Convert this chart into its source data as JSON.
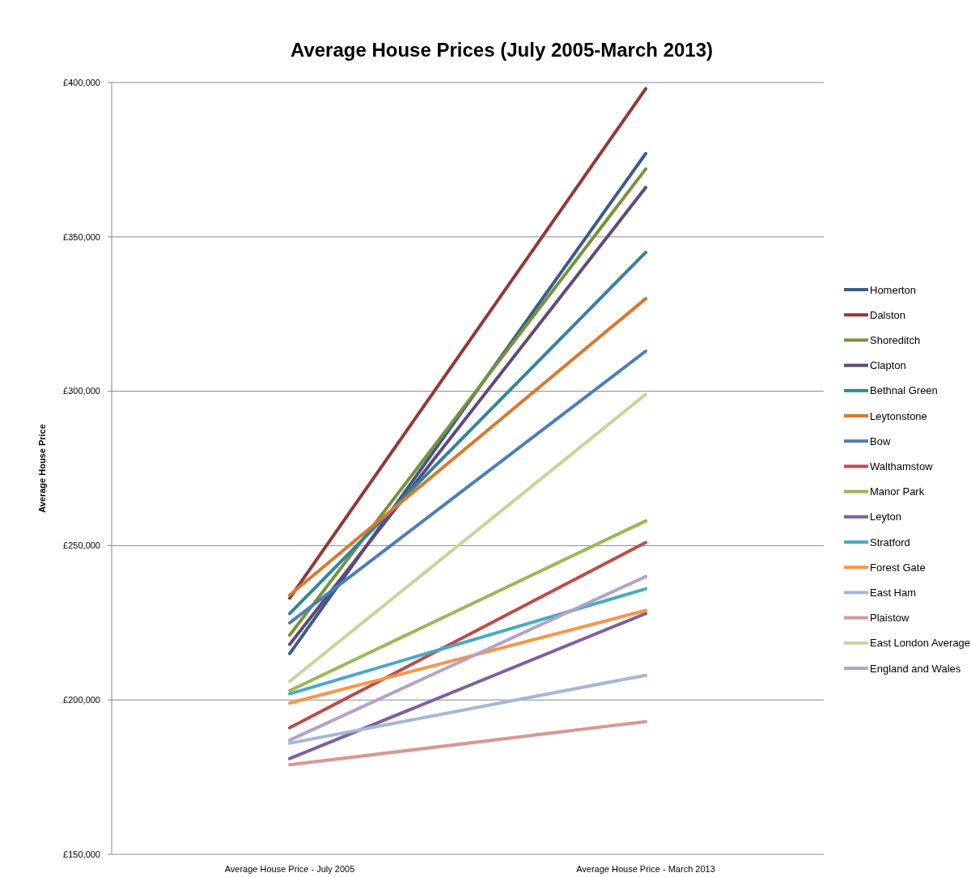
{
  "chart_data": {
    "type": "line",
    "title": "Average House Prices (July 2005-March 2013)",
    "ylabel": "Average House Price",
    "categories": [
      "Average House Price - July 2005",
      "Average House Price - March 2013"
    ],
    "ylim": [
      150000,
      400000
    ],
    "yticks": [
      {
        "value": 150000,
        "label": "£150,000"
      },
      {
        "value": 200000,
        "label": "£200,000"
      },
      {
        "value": 250000,
        "label": "£250,000"
      },
      {
        "value": 300000,
        "label": "£300,000"
      },
      {
        "value": 350000,
        "label": "£350,000"
      },
      {
        "value": 400000,
        "label": "£400,000"
      }
    ],
    "grid": "y",
    "legend": "right",
    "marker": "none",
    "line_style": "solid",
    "series": [
      {
        "name": "Homerton",
        "color": "#3c5a8c",
        "values": [
          215000,
          377000
        ]
      },
      {
        "name": "Dalston",
        "color": "#953735",
        "values": [
          233000,
          398000
        ]
      },
      {
        "name": "Shoreditch",
        "color": "#77933c",
        "values": [
          221000,
          372000
        ]
      },
      {
        "name": "Clapton",
        "color": "#5f497a",
        "values": [
          218000,
          366000
        ]
      },
      {
        "name": "Bethnal Green",
        "color": "#31859c",
        "values": [
          228000,
          345000
        ]
      },
      {
        "name": "Leytonstone",
        "color": "#d9782d",
        "values": [
          234000,
          330000
        ]
      },
      {
        "name": "Bow",
        "color": "#4a7ebb",
        "values": [
          225000,
          313000
        ]
      },
      {
        "name": "Walthamstow",
        "color": "#be4b48",
        "values": [
          191000,
          251000
        ]
      },
      {
        "name": "Manor Park",
        "color": "#98b954",
        "values": [
          203000,
          258000
        ]
      },
      {
        "name": "Leyton",
        "color": "#7d60a0",
        "values": [
          181000,
          228000
        ]
      },
      {
        "name": "Stratford",
        "color": "#46aac5",
        "values": [
          202000,
          236000
        ]
      },
      {
        "name": "Forest Gate",
        "color": "#f79646",
        "values": [
          199000,
          229000
        ]
      },
      {
        "name": "East Ham",
        "color": "#a5b6d6",
        "values": [
          186000,
          208000
        ]
      },
      {
        "name": "Plaistow",
        "color": "#d99694",
        "values": [
          179000,
          193000
        ]
      },
      {
        "name": "East London Average",
        "color": "#c3d69b",
        "values": [
          206000,
          299000
        ]
      },
      {
        "name": "England and Wales",
        "color": "#b3a2c7",
        "values": [
          187000,
          240000
        ]
      }
    ]
  }
}
